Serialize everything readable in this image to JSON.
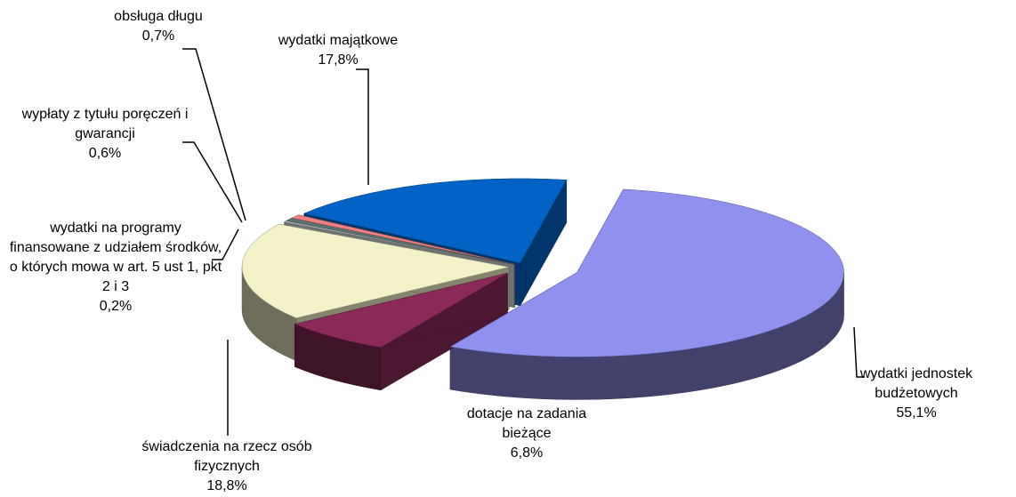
{
  "chart_data": {
    "type": "pie",
    "categories": [
      "wydatki jednostek budżetowych",
      "dotacje na zadania bieżące",
      "świadczenia na rzecz osób fizycznych",
      "wydatki na programy finansowane z udziałem środków, o których mowa w art. 5 ust 1, pkt 2 i 3",
      "wypłaty z tytułu poręczeń i gwarancji",
      "obsługa długu",
      "wydatki majątkowe"
    ],
    "values": [
      55.1,
      6.8,
      18.8,
      0.2,
      0.6,
      0.7,
      17.8
    ],
    "value_labels": [
      "55,1%",
      "6,8%",
      "18,8%",
      "0,2%",
      "0,6%",
      "0,7%",
      "17,8%"
    ],
    "colors": [
      "#9090ee",
      "#8b2a58",
      "#f2f2c6",
      "#c8d0d0",
      "#5a7272",
      "#f08080",
      "#0062c4"
    ]
  }
}
